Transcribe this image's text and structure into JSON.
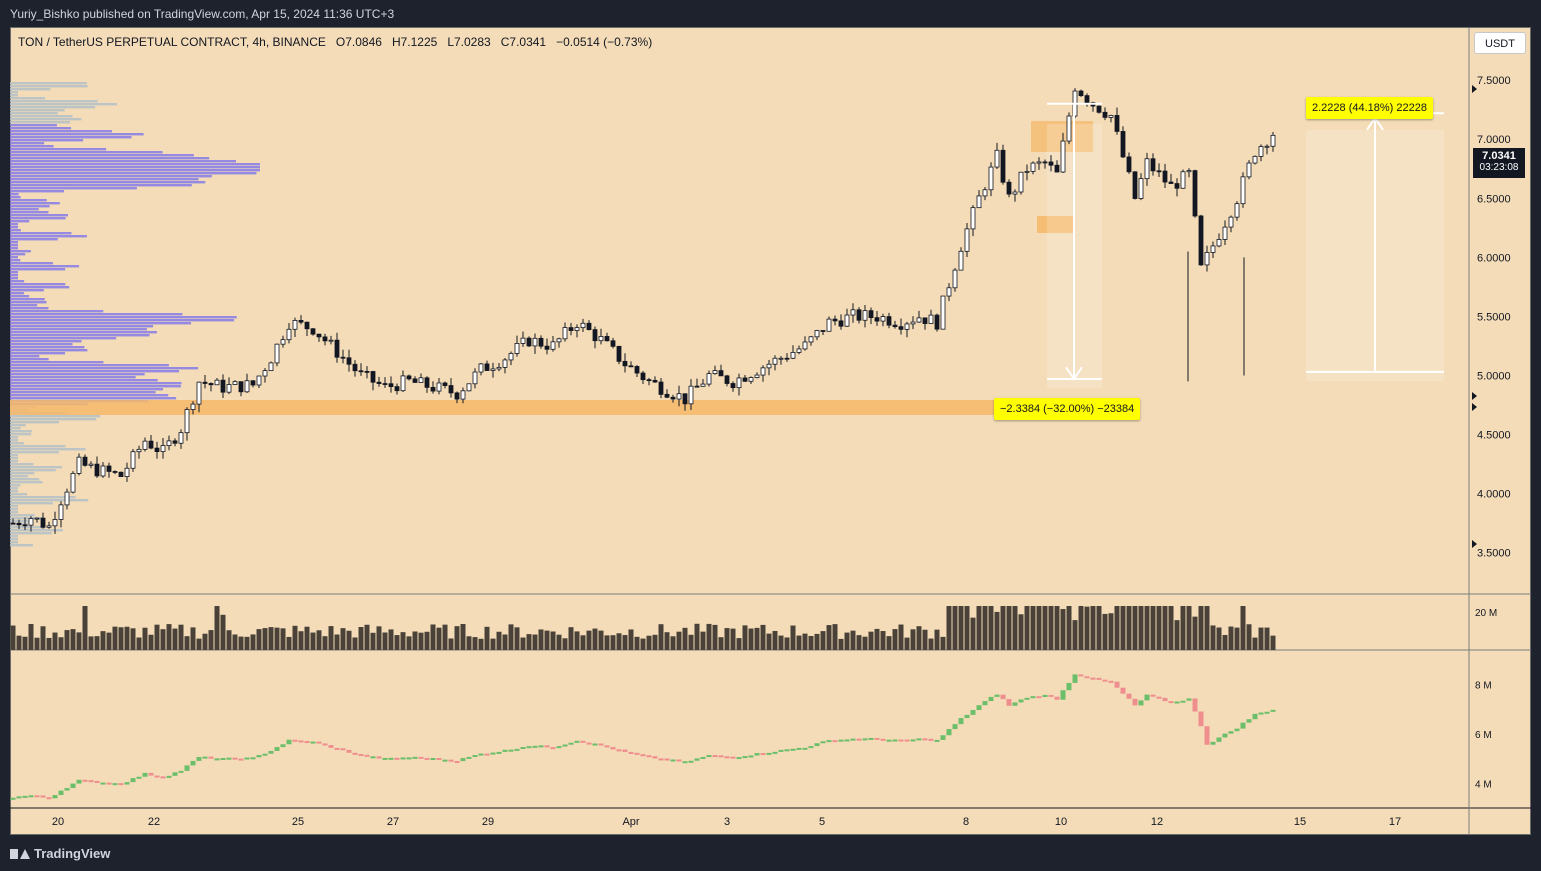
{
  "publisher_line": "Yuriy_Bishko published on TradingView.com, Apr 15, 2024 11:36 UTC+3",
  "legend": {
    "symbol": "TON / TetherUS PERPETUAL CONTRACT, 4h, BINANCE",
    "open": "O7.0846",
    "high": "H7.1225",
    "low": "L7.0283",
    "close": "C7.0341",
    "change": "−0.0514 (−0.73%)"
  },
  "currency_button": "USDT",
  "last_price": {
    "price": "7.0341",
    "countdown": "03:23:08"
  },
  "measures": {
    "up": "2.2228 (44.18%) 22228",
    "down": "−2.3384 (−32.00%) −23384"
  },
  "branding": "TradingView",
  "colors": {
    "background": "#f3dcb7",
    "candle_up": "#ffffff",
    "candle_down": "#131722",
    "zone": "#f6b96a",
    "volume": "#4a4238",
    "obv_up": "#6cbf6a",
    "obv_down": "#ef8e8e",
    "profile_high": "#8b80e6",
    "profile_low": "#b7c1c7",
    "measure_label": "#ffff00"
  },
  "chart_data": [
    {
      "type": "candlestick",
      "timeframe": "4h",
      "x_ticks": [
        "20",
        "22",
        "25",
        "27",
        "29",
        "Apr",
        "3",
        "5",
        "8",
        "10",
        "12",
        "15",
        "17"
      ],
      "y_ticks": [
        "7.5000",
        "7.0000",
        "6.5000",
        "6.0000",
        "5.5000",
        "5.0000",
        "4.5000",
        "4.0000",
        "3.5000"
      ],
      "ylim": [
        3.15,
        7.95
      ],
      "path_anchors": [
        [
          0,
          3.75
        ],
        [
          3,
          3.8
        ],
        [
          6,
          3.72
        ],
        [
          8,
          3.95
        ],
        [
          11,
          4.25
        ],
        [
          14,
          4.2
        ],
        [
          18,
          4.15
        ],
        [
          22,
          4.45
        ],
        [
          25,
          4.35
        ],
        [
          28,
          4.55
        ],
        [
          31,
          4.95
        ],
        [
          35,
          4.9
        ],
        [
          40,
          4.92
        ],
        [
          43,
          5.15
        ],
        [
          46,
          5.45
        ],
        [
          50,
          5.4
        ],
        [
          54,
          5.2
        ],
        [
          58,
          5.0
        ],
        [
          62,
          4.9
        ],
        [
          66,
          4.95
        ],
        [
          70,
          4.9
        ],
        [
          74,
          4.85
        ],
        [
          78,
          5.05
        ],
        [
          82,
          5.15
        ],
        [
          86,
          5.3
        ],
        [
          90,
          5.25
        ],
        [
          94,
          5.45
        ],
        [
          98,
          5.3
        ],
        [
          102,
          5.1
        ],
        [
          106,
          4.95
        ],
        [
          110,
          4.85
        ],
        [
          112,
          4.8
        ],
        [
          116,
          5.0
        ],
        [
          120,
          4.95
        ],
        [
          124,
          5.05
        ],
        [
          128,
          5.15
        ],
        [
          132,
          5.25
        ],
        [
          136,
          5.45
        ],
        [
          140,
          5.5
        ],
        [
          144,
          5.5
        ],
        [
          148,
          5.45
        ],
        [
          151,
          5.5
        ],
        [
          154,
          5.45
        ],
        [
          158,
          6.1
        ],
        [
          161,
          6.5
        ],
        [
          164,
          6.85
        ],
        [
          166,
          6.5
        ],
        [
          169,
          6.75
        ],
        [
          172,
          6.8
        ],
        [
          174,
          6.7
        ],
        [
          177,
          7.45
        ],
        [
          180,
          7.3
        ],
        [
          183,
          7.2
        ],
        [
          187,
          6.5
        ],
        [
          189,
          6.8
        ],
        [
          193,
          6.6
        ],
        [
          196,
          6.7
        ],
        [
          198,
          5.9
        ],
        [
          201,
          6.2
        ],
        [
          204,
          6.5
        ],
        [
          207,
          6.9
        ],
        [
          210,
          7.05
        ]
      ],
      "ohlc_sample": {
        "open": 7.0846,
        "high": 7.1225,
        "low": 7.0283,
        "close": 7.0341
      }
    },
    {
      "type": "bar",
      "name": "Volume",
      "y_ticks": [
        "20 M"
      ]
    },
    {
      "type": "line",
      "name": "OBV",
      "y_ticks": [
        "8 M",
        "6 M",
        "4 M"
      ]
    }
  ]
}
